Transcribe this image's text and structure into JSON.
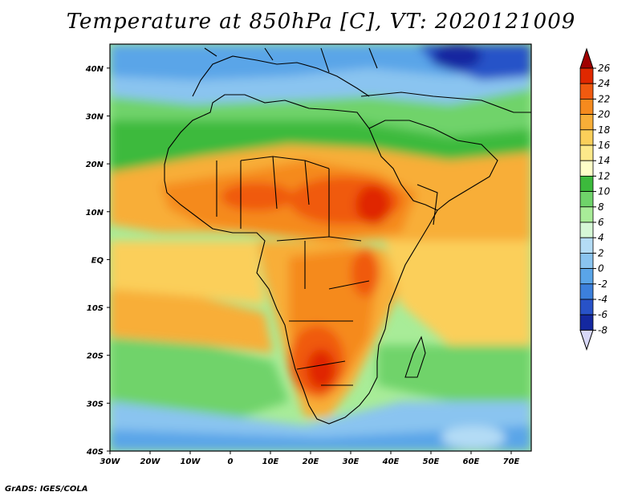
{
  "title": "Temperature at 850hPa [C], VT: 2020121009",
  "footer": "GrADS: IGES/COLA",
  "map": {
    "projection": "latlon",
    "lon_range": [
      -30,
      75
    ],
    "lat_range": [
      -40,
      45
    ],
    "lon_ticks": [
      "30W",
      "20W",
      "10W",
      "0",
      "10E",
      "20E",
      "30E",
      "40E",
      "50E",
      "60E",
      "70E"
    ],
    "lat_ticks": [
      "40N",
      "30N",
      "20N",
      "10N",
      "EQ",
      "10S",
      "20S",
      "30S",
      "40S"
    ]
  },
  "colorbar": {
    "labels": [
      "26",
      "24",
      "22",
      "20",
      "18",
      "16",
      "14",
      "12",
      "10",
      "8",
      "6",
      "4",
      "2",
      "0",
      "-2",
      "-4",
      "-6",
      "-8"
    ],
    "colors": [
      "#a00000",
      "#e02800",
      "#f05a10",
      "#f58a1e",
      "#f8ae38",
      "#fbcf5a",
      "#fde98a",
      "#ffffc8",
      "#3cba3c",
      "#6fd36a",
      "#a8ec98",
      "#d6f8d6",
      "#b4dcf5",
      "#8ac4f0",
      "#5aa5e8",
      "#3c80dc",
      "#2852c8",
      "#1428a0",
      "#0a1070",
      "#d8d8f8"
    ],
    "top_color": "#a00000",
    "bottom_color": "#d8d8f8"
  }
}
